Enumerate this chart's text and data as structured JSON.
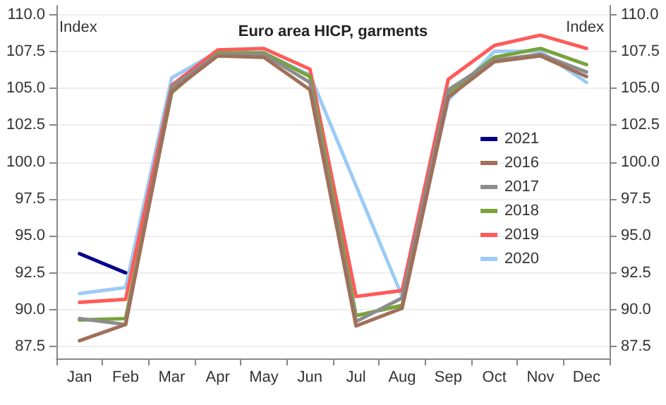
{
  "chart_data": {
    "type": "line",
    "title": "Euro area HICP, garments",
    "ylabel": "Index",
    "y2label": "Index",
    "categories": [
      "Jan",
      "Feb",
      "Mar",
      "Apr",
      "May",
      "Jun",
      "Jul",
      "Aug",
      "Sep",
      "Oct",
      "Nov",
      "Dec"
    ],
    "series": [
      {
        "name": "2021",
        "color": "#00008b",
        "values": [
          93.8,
          92.5,
          null,
          null,
          null,
          null,
          null,
          null,
          null,
          null,
          null,
          null
        ]
      },
      {
        "name": "2016",
        "color": "#a0705a",
        "values": [
          87.9,
          89.0,
          104.8,
          107.2,
          107.1,
          104.9,
          88.9,
          90.1,
          104.4,
          106.8,
          107.2,
          105.8
        ]
      },
      {
        "name": "2017",
        "color": "#8c8c8c",
        "values": [
          89.4,
          89.0,
          105.1,
          107.3,
          107.3,
          105.4,
          89.2,
          90.8,
          104.9,
          106.9,
          107.3,
          106.1
        ]
      },
      {
        "name": "2018",
        "color": "#77a33a",
        "values": [
          89.3,
          89.4,
          104.7,
          107.4,
          107.4,
          105.8,
          89.6,
          90.3,
          104.7,
          107.1,
          107.7,
          106.6
        ]
      },
      {
        "name": "2019",
        "color": "#ff5a5a",
        "values": [
          90.5,
          90.7,
          105.2,
          107.6,
          107.7,
          106.3,
          90.9,
          91.3,
          105.6,
          107.9,
          108.6,
          107.7
        ]
      },
      {
        "name": "2020",
        "color": "#9ccbf5",
        "values": [
          91.1,
          91.5,
          105.7,
          107.5,
          107.4,
          105.9,
          null,
          90.9,
          104.2,
          107.5,
          107.5,
          105.4
        ]
      }
    ],
    "ylim": [
      86.7,
      110.6
    ],
    "yticks": [
      87.5,
      {
        "value": 90,
        "label": "90.0"
      },
      92.5,
      {
        "value": 95,
        "label": "95.0"
      },
      97.5,
      {
        "value": 100,
        "label": "100.0"
      },
      102.5,
      {
        "value": 105,
        "label": "105.0"
      },
      107.5,
      {
        "value": 110,
        "label": "110.0"
      }
    ],
    "y2lim": [
      86.7,
      110.6
    ],
    "y2ticks": [
      87.5,
      {
        "value": 90,
        "label": "90.0"
      },
      92.5,
      {
        "value": 95,
        "label": "95.0"
      },
      97.5,
      {
        "value": 100,
        "label": "100.0"
      },
      102.5,
      {
        "value": 105,
        "label": "105.0"
      },
      107.5,
      {
        "value": 110,
        "label": "110.0"
      }
    ],
    "grid": "y",
    "legend": "right",
    "marker": "none",
    "line_style": "solid"
  }
}
